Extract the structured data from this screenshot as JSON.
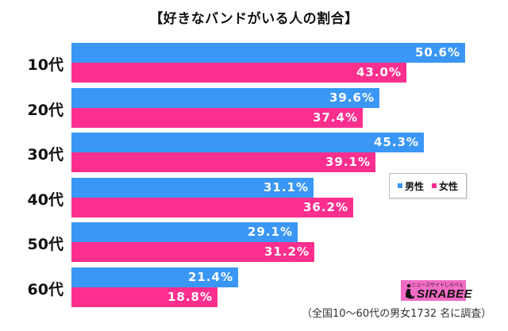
{
  "chart_data": {
    "type": "bar",
    "orientation": "horizontal",
    "title": "【好きなバンドがいる人の割合】",
    "categories": [
      "10代",
      "20代",
      "30代",
      "40代",
      "50代",
      "60代"
    ],
    "series": [
      {
        "name": "男性",
        "color": "#3a97f5",
        "values": [
          50.6,
          39.6,
          45.3,
          31.1,
          29.1,
          21.4
        ]
      },
      {
        "name": "女性",
        "color": "#fc2f8f",
        "values": [
          43.0,
          37.4,
          39.1,
          36.2,
          31.2,
          18.8
        ]
      }
    ],
    "value_suffix": "%",
    "xlabel": "",
    "ylabel": "",
    "xlim": [
      0,
      50.6
    ],
    "grid": false,
    "legend_position": "right-middle",
    "data_labels": true
  },
  "legend": {
    "items": [
      {
        "label": "男性",
        "color": "#3a97f5"
      },
      {
        "label": "女性",
        "color": "#fc2f8f"
      }
    ]
  },
  "logo": {
    "brand": "SIRABEE",
    "tagline": "ニュースサイトしらべぇ",
    "color": "#f26bc4"
  },
  "footnote": "（全国10～60代の男女1732 名に調査）"
}
